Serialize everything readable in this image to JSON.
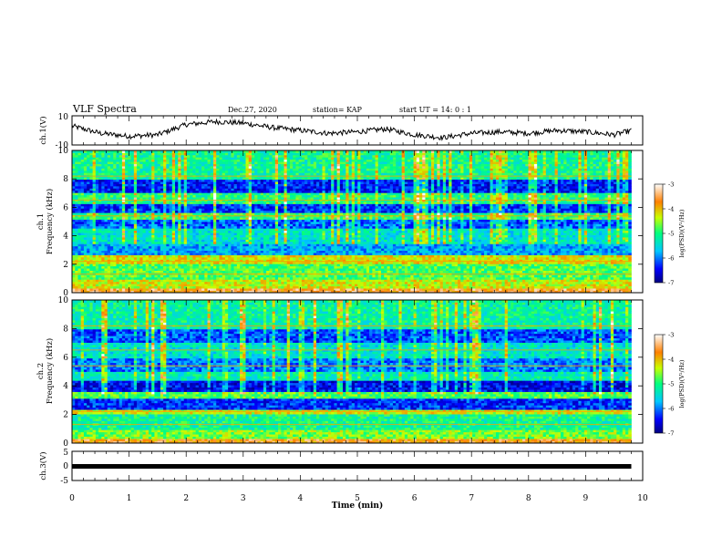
{
  "header": {
    "title": "VLF Spectra",
    "date": "Dec.27, 2020",
    "station": "station= KAP",
    "start_ut": "start UT =   14: 0  : 1"
  },
  "chart_data": [
    {
      "type": "line",
      "panel": "ch1-waveform",
      "ylabel": "ch.1(V)",
      "ylim": [
        -10,
        10
      ],
      "yticks": [
        "10",
        "-10"
      ],
      "xlim": [
        0,
        10
      ],
      "data_end_min": 9.8,
      "x": [
        0,
        0.5,
        1.0,
        1.5,
        2.0,
        2.5,
        3.0,
        3.5,
        4.0,
        4.5,
        5.0,
        5.5,
        6.0,
        6.5,
        7.0,
        7.5,
        8.0,
        8.5,
        9.0,
        9.5,
        9.8
      ],
      "values": [
        3,
        -2,
        -4,
        -3,
        4,
        6,
        5,
        2,
        0,
        -2,
        -1,
        1,
        -3,
        -5,
        -2,
        -1,
        -2,
        0,
        -1,
        -3,
        0
      ]
    },
    {
      "type": "heatmap",
      "panel": "ch1-spectrogram",
      "ylabel": "ch.1",
      "ylabel2": "Frequency (kHz)",
      "xlim": [
        0,
        10
      ],
      "ylim": [
        0,
        10
      ],
      "yticks": [
        "0",
        "2",
        "4",
        "6",
        "8",
        "10"
      ],
      "bands": [
        {
          "f0": 0.0,
          "f1": 0.3,
          "level": -3.6
        },
        {
          "f0": 0.3,
          "f1": 1.0,
          "level": -4.3
        },
        {
          "f0": 1.0,
          "f1": 2.0,
          "level": -4.8
        },
        {
          "f0": 2.0,
          "f1": 2.6,
          "level": -4.2
        },
        {
          "f0": 2.6,
          "f1": 3.4,
          "level": -5.8
        },
        {
          "f0": 3.4,
          "f1": 4.6,
          "level": -5.4
        },
        {
          "f0": 4.6,
          "f1": 5.2,
          "level": -6.1
        },
        {
          "f0": 5.2,
          "f1": 5.7,
          "level": -4.9
        },
        {
          "f0": 5.7,
          "f1": 6.3,
          "level": -6.3
        },
        {
          "f0": 6.3,
          "f1": 7.0,
          "level": -5.0
        },
        {
          "f0": 7.0,
          "f1": 8.0,
          "level": -6.4
        },
        {
          "f0": 8.0,
          "f1": 10.0,
          "level": -5.1
        }
      ],
      "colorbar": {
        "label": "log(PSD)(V²/Hz)",
        "range": [
          -7,
          -3
        ],
        "ticks": [
          "-3",
          "-4",
          "-5",
          "-6",
          "-7"
        ]
      }
    },
    {
      "type": "heatmap",
      "panel": "ch2-spectrogram",
      "ylabel": "ch.2",
      "ylabel2": "Frequency (kHz)",
      "xlim": [
        0,
        10
      ],
      "ylim": [
        0,
        10
      ],
      "yticks": [
        "0",
        "2",
        "4",
        "6",
        "8",
        "10"
      ],
      "bands": [
        {
          "f0": 0.0,
          "f1": 0.3,
          "level": -3.7
        },
        {
          "f0": 0.3,
          "f1": 1.0,
          "level": -4.6
        },
        {
          "f0": 1.0,
          "f1": 2.0,
          "level": -5.1
        },
        {
          "f0": 2.0,
          "f1": 2.4,
          "level": -4.3
        },
        {
          "f0": 2.4,
          "f1": 3.2,
          "level": -6.3
        },
        {
          "f0": 3.2,
          "f1": 3.6,
          "level": -4.8
        },
        {
          "f0": 3.6,
          "f1": 4.4,
          "level": -6.5
        },
        {
          "f0": 4.4,
          "f1": 5.0,
          "level": -5.3
        },
        {
          "f0": 5.0,
          "f1": 6.0,
          "level": -6.0
        },
        {
          "f0": 6.0,
          "f1": 7.0,
          "level": -5.4
        },
        {
          "f0": 7.0,
          "f1": 8.0,
          "level": -6.2
        },
        {
          "f0": 8.0,
          "f1": 10.0,
          "level": -5.2
        }
      ],
      "colorbar": {
        "label": "log(PSD)(V²/Hz)",
        "range": [
          -7,
          -3
        ],
        "ticks": [
          "-3",
          "-4",
          "-5",
          "-6",
          "-7"
        ]
      }
    },
    {
      "type": "line",
      "panel": "ch3-waveform",
      "ylabel": "ch.3(V)",
      "ylim": [
        -5,
        5
      ],
      "yticks": [
        "5",
        "0",
        "-5"
      ],
      "xlim": [
        0,
        10
      ],
      "data_end_min": 9.8,
      "x": [
        0,
        9.8
      ],
      "values": [
        -0.3,
        -0.3
      ]
    }
  ],
  "xaxis": {
    "label": "Time (min)",
    "ticks": [
      "0",
      "1",
      "2",
      "3",
      "4",
      "5",
      "6",
      "7",
      "8",
      "9",
      "10"
    ]
  }
}
